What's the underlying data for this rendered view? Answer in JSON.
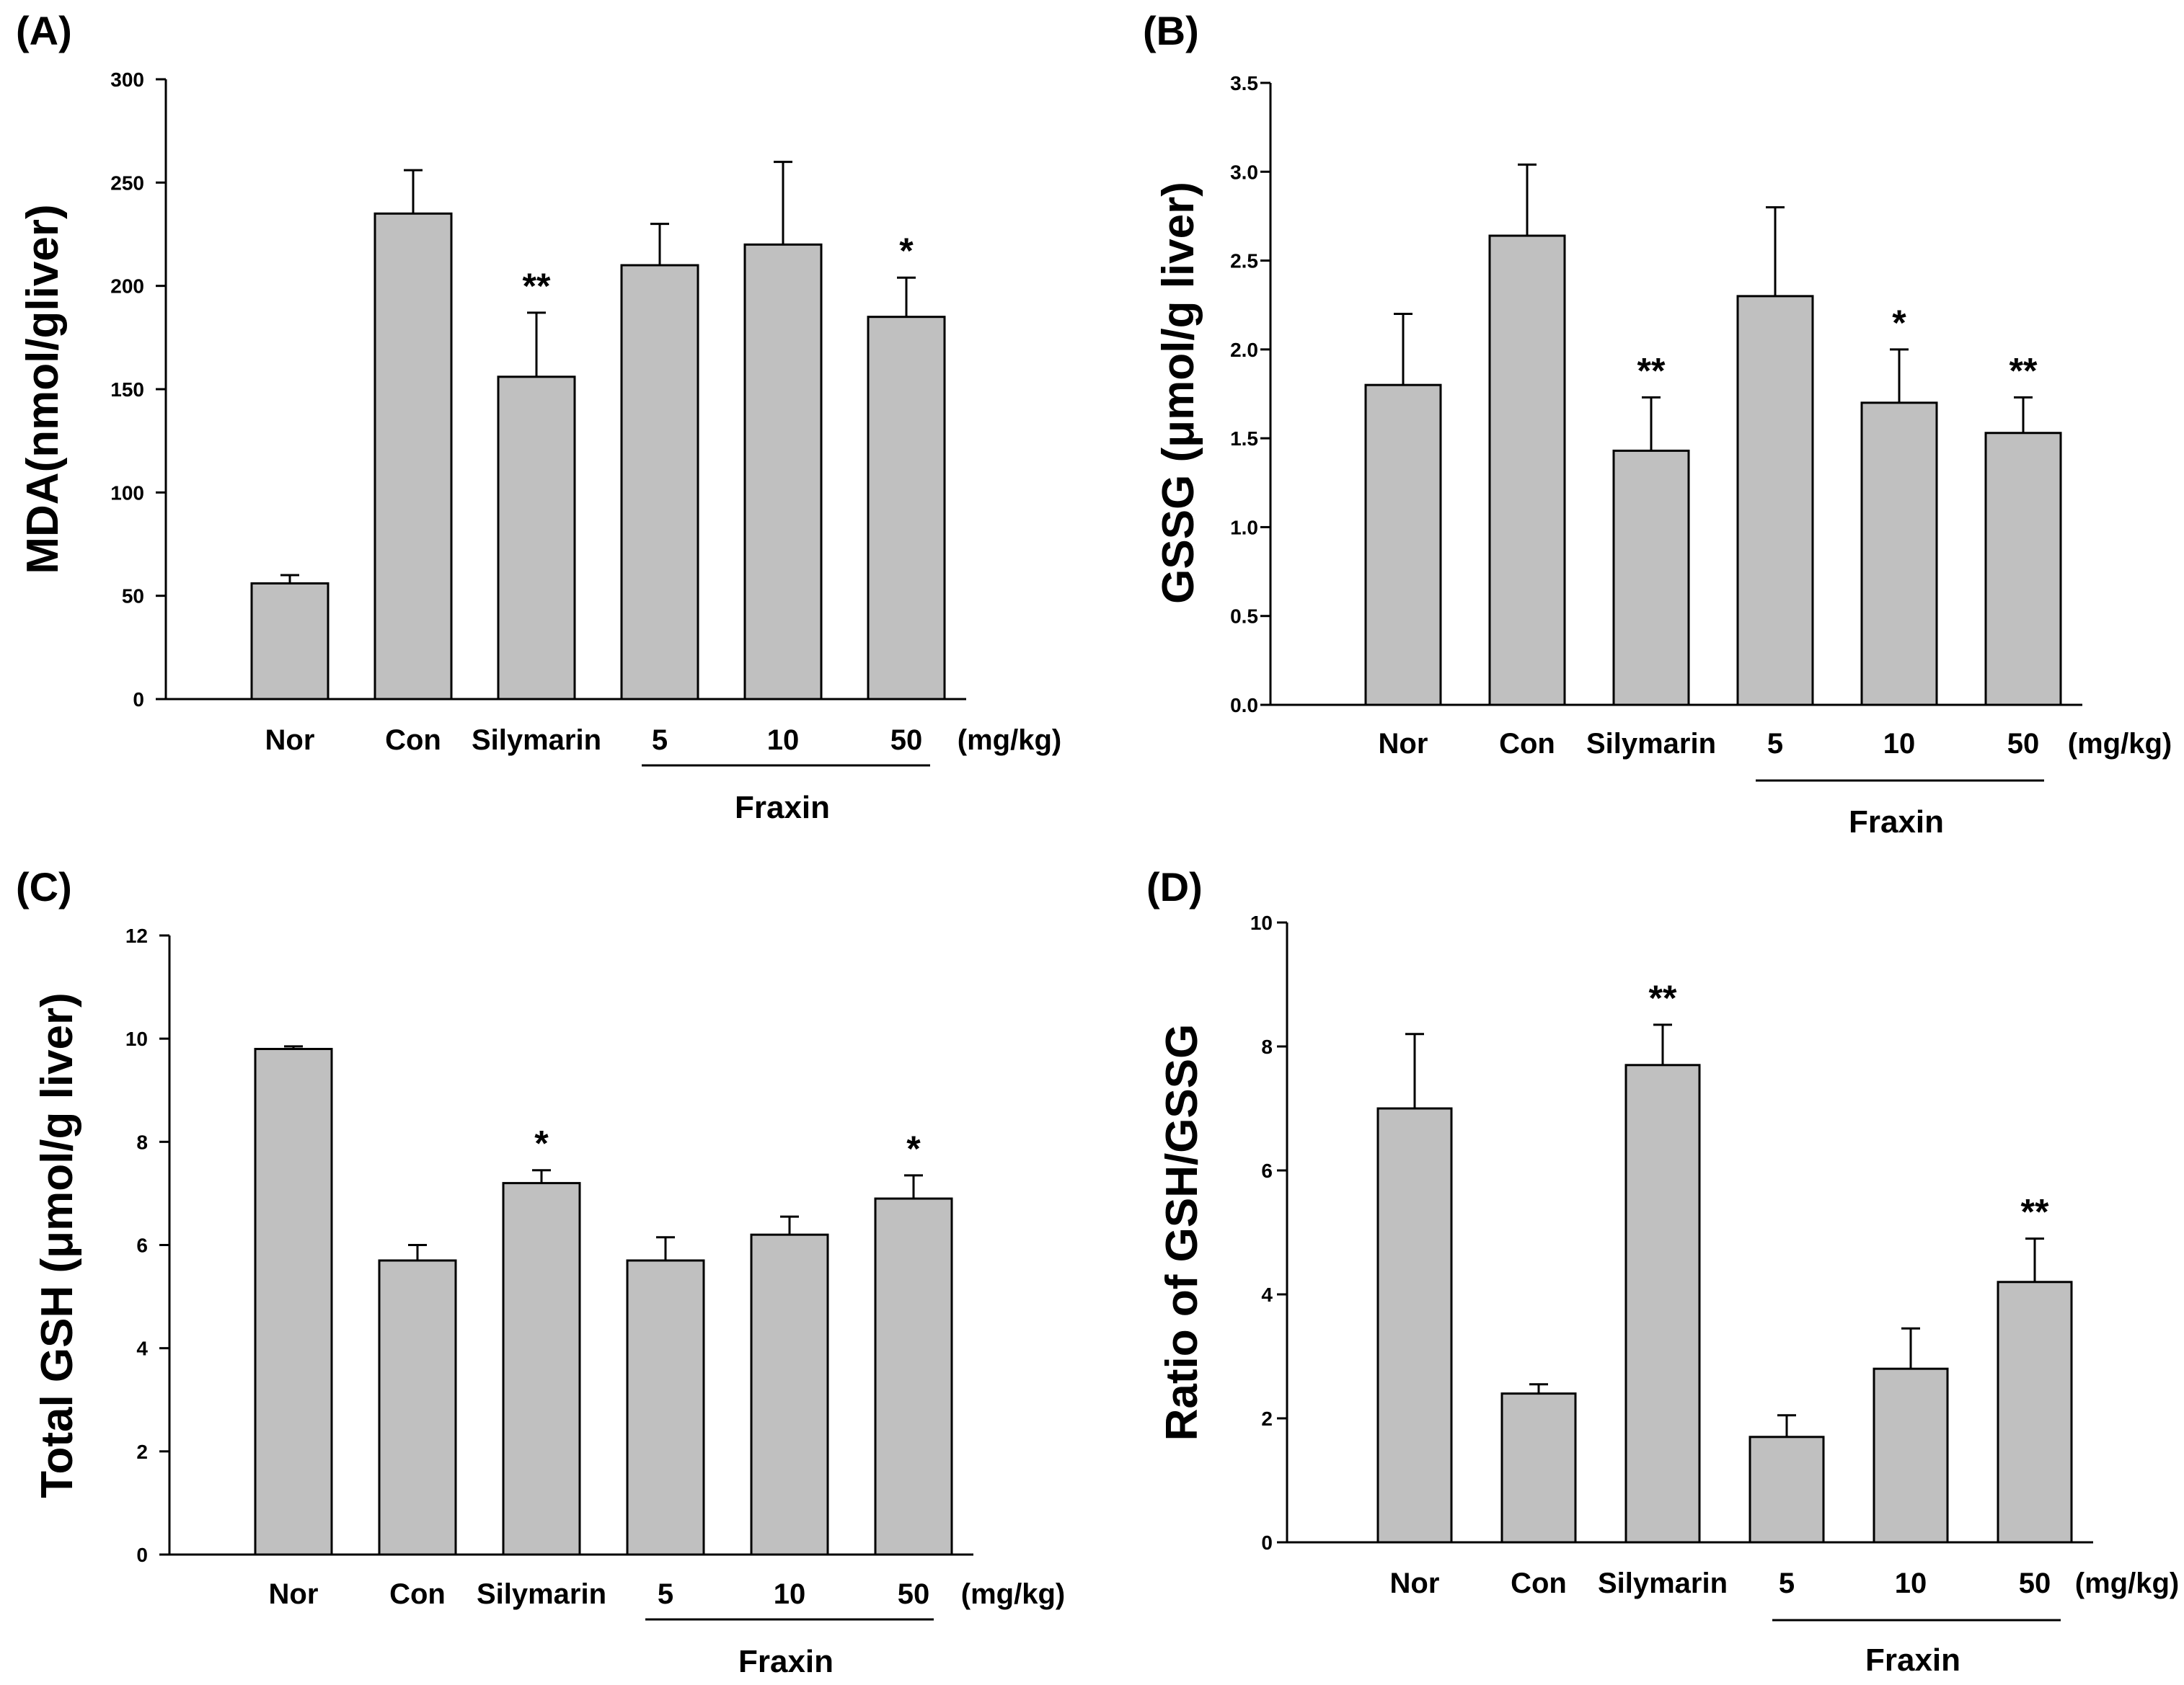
{
  "chart_data": [
    {
      "type": "bar",
      "panel_label": "(A)",
      "categories": [
        "Nor",
        "Con",
        "Silymarin",
        "5",
        "10",
        "50"
      ],
      "values": [
        56,
        235,
        156,
        210,
        220,
        185
      ],
      "errors": [
        4,
        21,
        31,
        20,
        40,
        19
      ],
      "significance": [
        "",
        "",
        "**",
        "",
        "",
        "*"
      ],
      "ylabel": "MDA(nmol/gliver)",
      "ylim": [
        0,
        300
      ],
      "yticks": [
        "0",
        "50",
        "100",
        "150",
        "200",
        "250",
        "300"
      ],
      "unit": "(mg/kg)",
      "group_label": "Fraxin"
    },
    {
      "type": "bar",
      "panel_label": "(B)",
      "categories": [
        "Nor",
        "Con",
        "Silymarin",
        "5",
        "10",
        "50"
      ],
      "values": [
        1.8,
        2.64,
        1.43,
        2.3,
        1.7,
        1.53
      ],
      "errors": [
        0.4,
        0.4,
        0.3,
        0.5,
        0.3,
        0.2
      ],
      "significance": [
        "",
        "",
        "**",
        "",
        "*",
        "**"
      ],
      "ylabel": "GSSG (μmol/g liver)",
      "ylim": [
        0,
        3.5
      ],
      "yticks": [
        "0.0",
        "0.5",
        "1.0",
        "1.5",
        "2.0",
        "2.5",
        "3.0",
        "3.5"
      ],
      "unit": "(mg/kg)",
      "group_label": "Fraxin"
    },
    {
      "type": "bar",
      "panel_label": "(C)",
      "categories": [
        "Nor",
        "Con",
        "Silymarin",
        "5",
        "10",
        "50"
      ],
      "values": [
        9.8,
        5.7,
        7.2,
        5.7,
        6.2,
        6.9
      ],
      "errors": [
        0.05,
        0.3,
        0.25,
        0.45,
        0.35,
        0.45
      ],
      "significance": [
        "",
        "",
        "*",
        "",
        "",
        "*"
      ],
      "ylabel": "Total GSH (μmol/g liver)",
      "ylim": [
        0,
        12
      ],
      "yticks": [
        "0",
        "2",
        "4",
        "6",
        "8",
        "10",
        "12"
      ],
      "unit": "(mg/kg)",
      "group_label": "Fraxin"
    },
    {
      "type": "bar",
      "panel_label": "(D)",
      "categories": [
        "Nor",
        "Con",
        "Silymarin",
        "5",
        "10",
        "50"
      ],
      "values": [
        7.0,
        2.4,
        7.7,
        1.7,
        2.8,
        4.2
      ],
      "errors": [
        1.2,
        0.15,
        0.65,
        0.35,
        0.65,
        0.7
      ],
      "significance": [
        "",
        "",
        "**",
        "",
        "",
        "**"
      ],
      "ylabel": "Ratio of GSH/GSSG",
      "ylim": [
        0,
        10
      ],
      "yticks": [
        "0",
        "2",
        "4",
        "6",
        "8",
        "10"
      ],
      "unit": "(mg/kg)",
      "group_label": "Fraxin"
    }
  ]
}
